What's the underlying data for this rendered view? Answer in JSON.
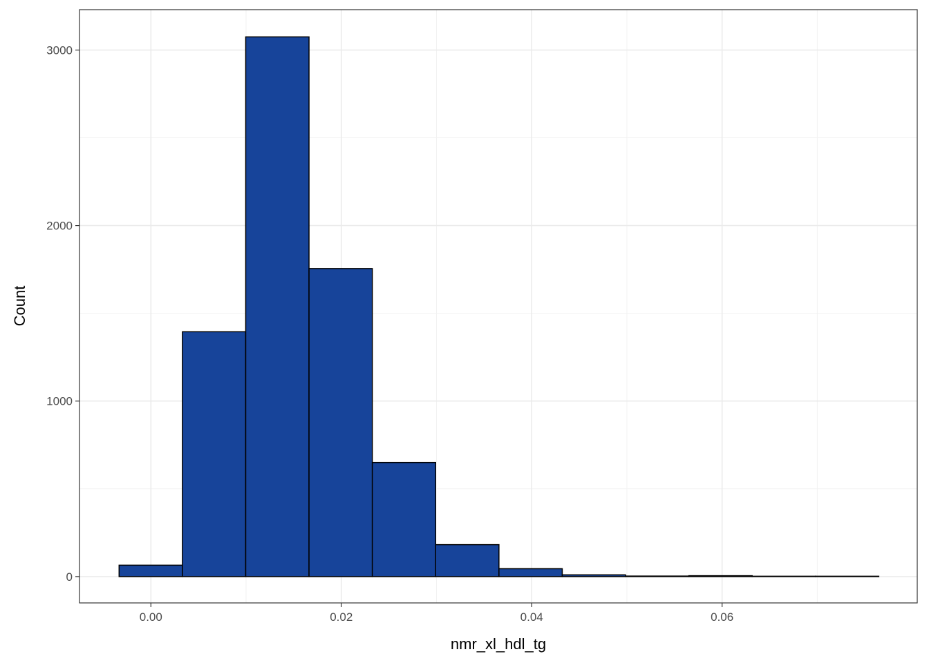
{
  "chart_data": {
    "type": "bar",
    "title": "",
    "xlabel": "nmr_xl_hdl_tg",
    "ylabel": "Count",
    "bin_edges": [
      -0.00334,
      0.00331,
      0.00996,
      0.01661,
      0.02326,
      0.02991,
      0.03656,
      0.04321,
      0.04986,
      0.05651,
      0.06316,
      0.06981,
      0.07646
    ],
    "values": [
      65,
      1395,
      3075,
      1755,
      650,
      182,
      45,
      10,
      3,
      5,
      2,
      2
    ],
    "xlim": [
      -0.0075,
      0.0805
    ],
    "ylim": [
      -150,
      3230
    ],
    "x_ticks": [
      0.0,
      0.02,
      0.04,
      0.06
    ],
    "x_tick_labels": [
      "0.00",
      "0.02",
      "0.04",
      "0.06"
    ],
    "y_ticks": [
      0,
      1000,
      2000,
      3000
    ],
    "y_tick_labels": [
      "0",
      "1000",
      "2000",
      "3000"
    ],
    "bar_fill": "#17449a",
    "bar_stroke": "#000000",
    "grid": true,
    "legend": "none"
  }
}
